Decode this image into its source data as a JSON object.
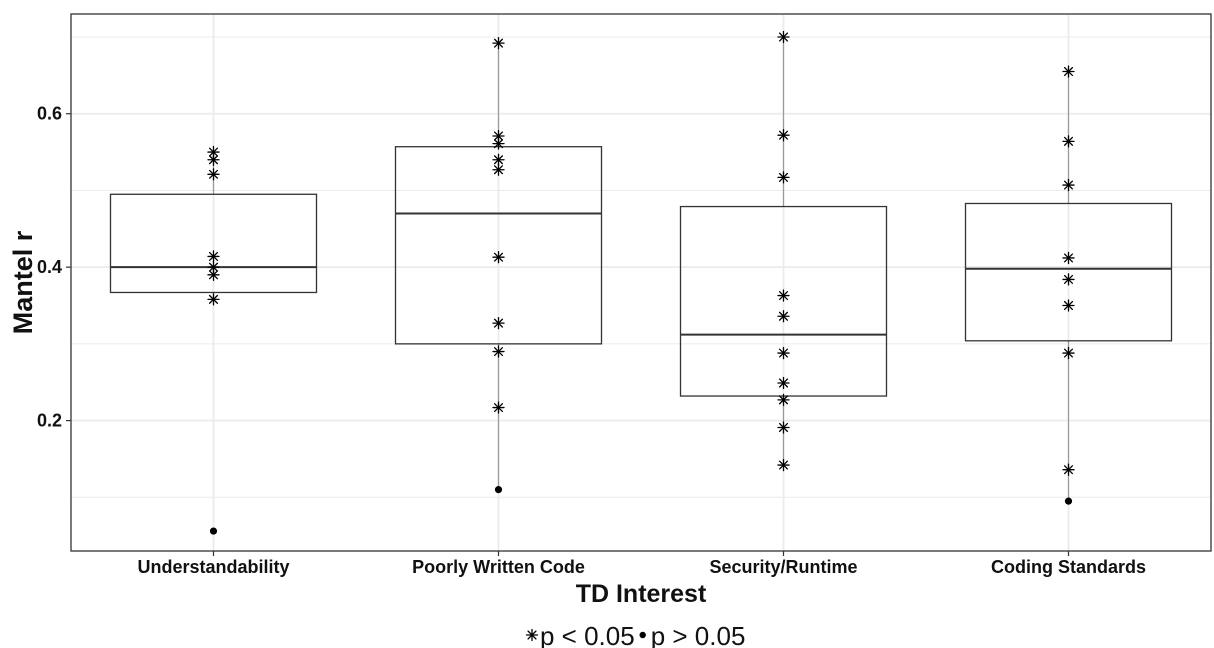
{
  "chart_data": {
    "type": "boxplot",
    "title": "",
    "xlabel": "TD Interest",
    "ylabel": "Mantel r",
    "ylim": [
      0.03,
      0.73
    ],
    "yticks": [
      0.2,
      0.4,
      0.6
    ],
    "yticklabels": [
      "0.2",
      "0.4",
      "0.6"
    ],
    "grid": true,
    "categories": [
      "Understandability",
      "Poorly Written Code",
      "Security/Runtime",
      "Coding Standards"
    ],
    "boxes": [
      {
        "q1": 0.367,
        "median": 0.4,
        "q3": 0.495,
        "whisker_low": 0.358,
        "whisker_high": 0.55
      },
      {
        "q1": 0.3,
        "median": 0.47,
        "q3": 0.557,
        "whisker_low": 0.11,
        "whisker_high": 0.692
      },
      {
        "q1": 0.232,
        "median": 0.312,
        "q3": 0.479,
        "whisker_low": 0.142,
        "whisker_high": 0.7
      },
      {
        "q1": 0.304,
        "median": 0.398,
        "q3": 0.483,
        "whisker_low": 0.095,
        "whisker_high": 0.655
      }
    ],
    "points": [
      [
        {
          "y": 0.55,
          "sig": true
        },
        {
          "y": 0.54,
          "sig": true
        },
        {
          "y": 0.521,
          "sig": true
        },
        {
          "y": 0.414,
          "sig": true
        },
        {
          "y": 0.4,
          "sig": true
        },
        {
          "y": 0.39,
          "sig": true
        },
        {
          "y": 0.358,
          "sig": true
        },
        {
          "y": 0.056,
          "sig": false
        }
      ],
      [
        {
          "y": 0.692,
          "sig": true
        },
        {
          "y": 0.571,
          "sig": true
        },
        {
          "y": 0.561,
          "sig": true
        },
        {
          "y": 0.54,
          "sig": true
        },
        {
          "y": 0.527,
          "sig": true
        },
        {
          "y": 0.413,
          "sig": true
        },
        {
          "y": 0.327,
          "sig": true
        },
        {
          "y": 0.29,
          "sig": true
        },
        {
          "y": 0.217,
          "sig": true
        },
        {
          "y": 0.11,
          "sig": false
        }
      ],
      [
        {
          "y": 0.7,
          "sig": true
        },
        {
          "y": 0.572,
          "sig": true
        },
        {
          "y": 0.517,
          "sig": true
        },
        {
          "y": 0.363,
          "sig": true
        },
        {
          "y": 0.336,
          "sig": true
        },
        {
          "y": 0.288,
          "sig": true
        },
        {
          "y": 0.249,
          "sig": true
        },
        {
          "y": 0.227,
          "sig": true
        },
        {
          "y": 0.191,
          "sig": true
        },
        {
          "y": 0.142,
          "sig": true
        }
      ],
      [
        {
          "y": 0.655,
          "sig": true
        },
        {
          "y": 0.564,
          "sig": true
        },
        {
          "y": 0.507,
          "sig": true
        },
        {
          "y": 0.412,
          "sig": true
        },
        {
          "y": 0.384,
          "sig": true
        },
        {
          "y": 0.35,
          "sig": true
        },
        {
          "y": 0.288,
          "sig": true
        },
        {
          "y": 0.136,
          "sig": true
        },
        {
          "y": 0.095,
          "sig": false
        }
      ]
    ],
    "legend": {
      "position": "bottom",
      "items": [
        {
          "symbol": "asterisk",
          "label": "p < 0.05"
        },
        {
          "symbol": "dot",
          "label": "p > 0.05"
        }
      ]
    },
    "colors": {
      "grid": "#ebebeb",
      "box": "#333333",
      "whisker": "#9a9a9a",
      "point": "#000000"
    }
  }
}
